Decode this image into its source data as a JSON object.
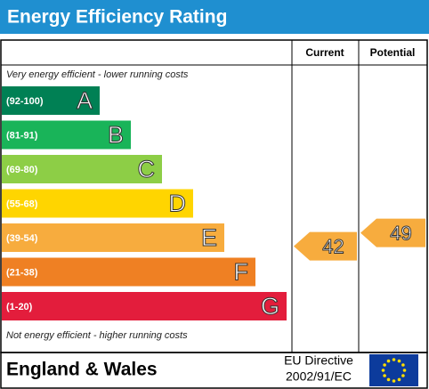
{
  "title": "Energy Efficiency Rating",
  "columns": {
    "current": "Current",
    "potential": "Potential"
  },
  "top_note": "Very energy efficient - lower running costs",
  "bottom_note": "Not energy efficient - higher running costs",
  "bands": [
    {
      "range": "(92-100)",
      "letter": "A",
      "color": "#008054"
    },
    {
      "range": "(81-91)",
      "letter": "B",
      "color": "#19b459"
    },
    {
      "range": "(69-80)",
      "letter": "C",
      "color": "#8dce46"
    },
    {
      "range": "(55-68)",
      "letter": "D",
      "color": "#ffd500"
    },
    {
      "range": "(39-54)",
      "letter": "E",
      "color": "#f7ac3e"
    },
    {
      "range": "(21-38)",
      "letter": "F",
      "color": "#ef8023"
    },
    {
      "range": "(1-20)",
      "letter": "G",
      "color": "#e31d3c"
    }
  ],
  "current": 42,
  "potential": 49,
  "footer": {
    "region": "England & Wales",
    "directive": [
      "EU Directive",
      "2002/91/EC"
    ]
  }
}
